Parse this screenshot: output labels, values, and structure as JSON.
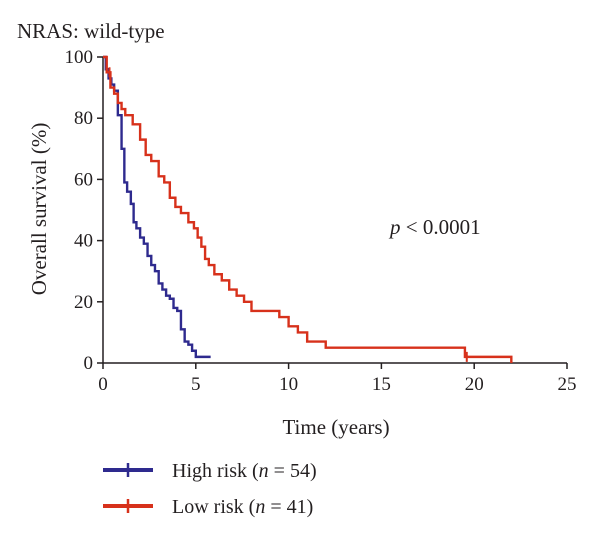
{
  "chart_data": {
    "type": "line",
    "subtype": "kaplan-meier",
    "title": "NRAS: wild-type",
    "xlabel": "Time (years)",
    "ylabel": "Overall survival (%)",
    "xlim": [
      0,
      25
    ],
    "ylim": [
      0,
      100
    ],
    "xticks": [
      "0",
      "5",
      "10",
      "15",
      "20",
      "25"
    ],
    "yticks": [
      "0",
      "20",
      "40",
      "60",
      "80",
      "100"
    ],
    "grid": false,
    "legend_position": "bottom-left",
    "annotation": {
      "italic": "p",
      "rest": " < 0.0001"
    },
    "series": [
      {
        "label_main": "High risk (",
        "label_n": "n",
        "label_rest": " = 54)",
        "color": "#2e2a8e",
        "x": [
          0,
          0.15,
          0.3,
          0.45,
          0.6,
          0.8,
          1.0,
          1.15,
          1.3,
          1.5,
          1.65,
          1.8,
          2.0,
          2.2,
          2.4,
          2.6,
          2.8,
          3.0,
          3.2,
          3.4,
          3.6,
          3.8,
          4.0,
          4.2,
          4.4,
          4.6,
          4.8,
          5.0,
          5.3,
          5.6,
          5.8
        ],
        "y": [
          100,
          96,
          93,
          91,
          89,
          81,
          70,
          59,
          56,
          52,
          46,
          44,
          41,
          39,
          35,
          32,
          30,
          26,
          24,
          22,
          21,
          18,
          17,
          11,
          7,
          6,
          4,
          2,
          2,
          2,
          2
        ],
        "censor": []
      },
      {
        "label_main": "Low risk (",
        "label_n": "n",
        "label_rest": " = 41)",
        "color": "#d7311b",
        "x": [
          0,
          0.2,
          0.4,
          0.6,
          0.8,
          1.0,
          1.2,
          1.6,
          2.0,
          2.3,
          2.6,
          3.0,
          3.3,
          3.6,
          3.9,
          4.2,
          4.6,
          4.9,
          5.1,
          5.3,
          5.5,
          5.7,
          6.0,
          6.4,
          6.8,
          7.2,
          7.6,
          8.0,
          9.5,
          10.0,
          10.5,
          11.0,
          11.5,
          12.0,
          12.5,
          19.5,
          22.0
        ],
        "y": [
          100,
          95,
          90,
          88,
          85,
          83,
          81,
          78,
          73,
          68,
          66,
          61,
          59,
          54,
          51,
          49,
          46,
          44,
          41,
          38,
          34,
          32,
          29,
          27,
          24,
          22,
          20,
          17,
          15,
          12,
          10,
          7,
          7,
          5,
          5,
          2,
          0
        ],
        "censor": [
          0.35,
          19.6
        ]
      }
    ]
  }
}
